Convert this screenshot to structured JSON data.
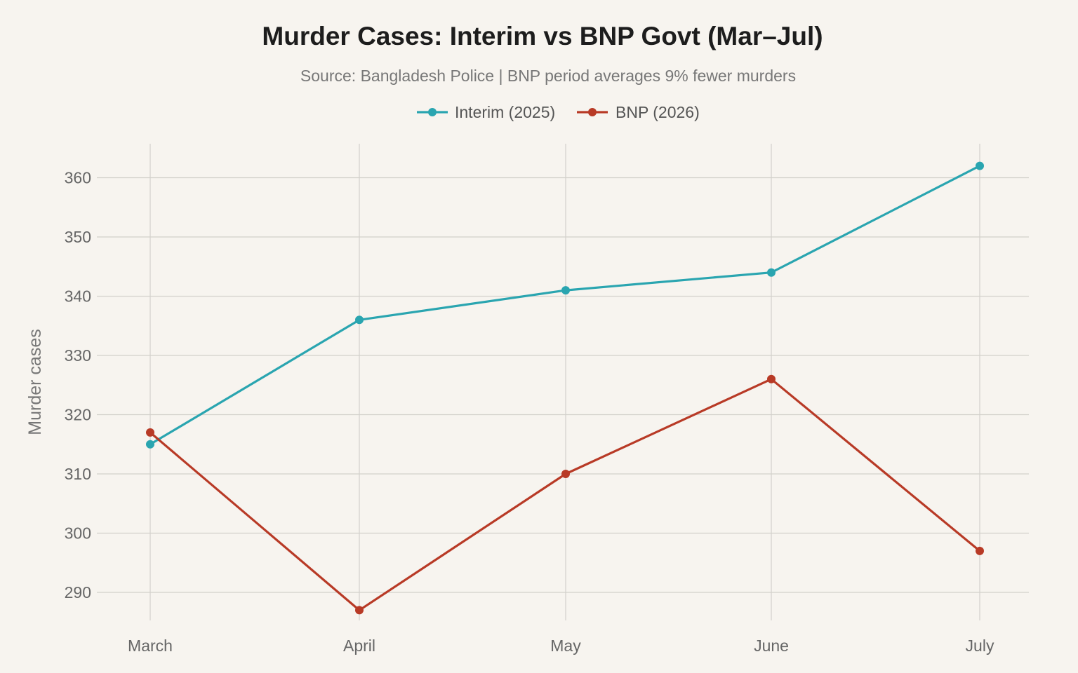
{
  "chart_data": {
    "type": "line",
    "title": "Murder Cases: Interim vs BNP Govt (Mar–Jul)",
    "subtitle": "Source: Bangladesh Police | BNP period averages 9% fewer murders",
    "xlabel": "",
    "ylabel": "Murder cases",
    "categories": [
      "March",
      "April",
      "May",
      "June",
      "July"
    ],
    "ylim": [
      285,
      366
    ],
    "yticks": [
      290,
      300,
      310,
      320,
      330,
      340,
      350,
      360
    ],
    "grid": true,
    "legend_position": "top-center",
    "series": [
      {
        "name": "Interim (2025)",
        "color": "#2aa5b0",
        "values": [
          315,
          336,
          341,
          344,
          362
        ]
      },
      {
        "name": "BNP (2026)",
        "color": "#b83a26",
        "values": [
          317,
          287,
          310,
          326,
          297
        ]
      }
    ]
  }
}
